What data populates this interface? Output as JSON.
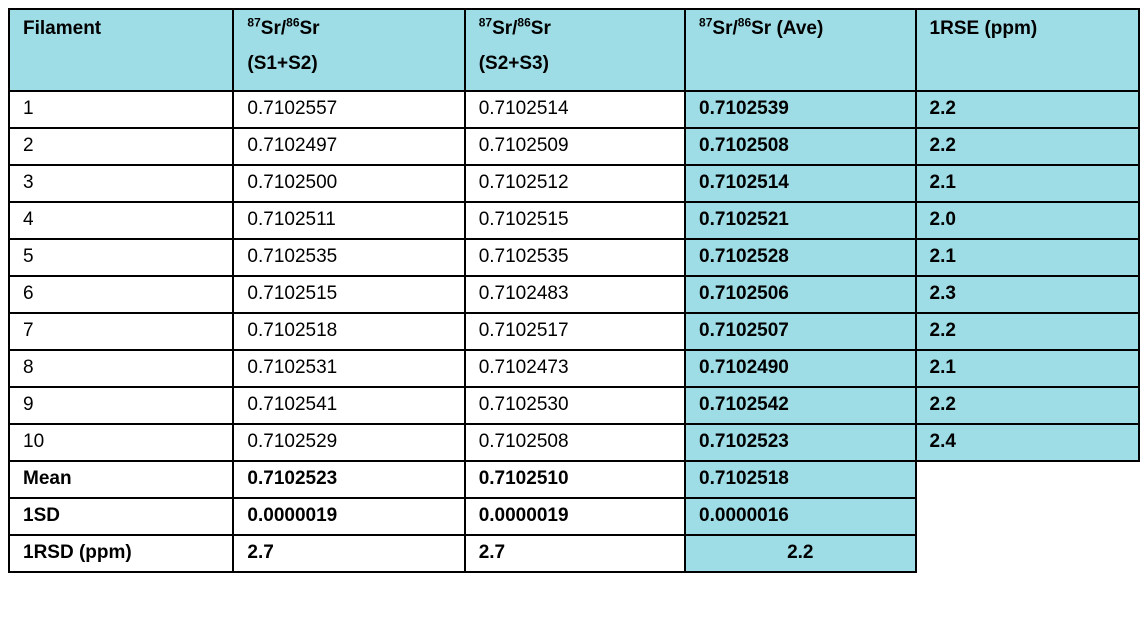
{
  "colors": {
    "header_bg": "#9EDDE6",
    "border": "#000000",
    "text": "#000000",
    "page_bg": "#FFFFFF"
  },
  "table": {
    "headers": [
      {
        "label": "Filament"
      },
      {
        "sup1": "87",
        "base1": "Sr/",
        "sup2": "86",
        "base2": "Sr",
        "line2": "(S1+S2)"
      },
      {
        "sup1": "87",
        "base1": "Sr/",
        "sup2": "86",
        "base2": "Sr",
        "line2": "(S2+S3)"
      },
      {
        "sup1": "87",
        "base1": "Sr/",
        "sup2": "86",
        "base2": "Sr",
        "suffix": " (Ave)"
      },
      {
        "label": "1RSE (ppm)"
      }
    ],
    "rows": [
      {
        "filament": "1",
        "s1s2": "0.7102557",
        "s2s3": "0.7102514",
        "ave": "0.7102539",
        "rse": "2.2"
      },
      {
        "filament": "2",
        "s1s2": "0.7102497",
        "s2s3": "0.7102509",
        "ave": "0.7102508",
        "rse": "2.2"
      },
      {
        "filament": "3",
        "s1s2": "0.7102500",
        "s2s3": "0.7102512",
        "ave": "0.7102514",
        "rse": "2.1"
      },
      {
        "filament": "4",
        "s1s2": "0.7102511",
        "s2s3": "0.7102515",
        "ave": "0.7102521",
        "rse": "2.0"
      },
      {
        "filament": "5",
        "s1s2": "0.7102535",
        "s2s3": "0.7102535",
        "ave": "0.7102528",
        "rse": "2.1"
      },
      {
        "filament": "6",
        "s1s2": "0.7102515",
        "s2s3": "0.7102483",
        "ave": "0.7102506",
        "rse": "2.3"
      },
      {
        "filament": "7",
        "s1s2": "0.7102518",
        "s2s3": "0.7102517",
        "ave": "0.7102507",
        "rse": "2.2"
      },
      {
        "filament": "8",
        "s1s2": "0.7102531",
        "s2s3": "0.7102473",
        "ave": "0.7102490",
        "rse": "2.1"
      },
      {
        "filament": "9",
        "s1s2": "0.7102541",
        "s2s3": "0.7102530",
        "ave": "0.7102542",
        "rse": "2.2"
      },
      {
        "filament": "10",
        "s1s2": "0.7102529",
        "s2s3": "0.7102508",
        "ave": "0.7102523",
        "rse": "2.4"
      }
    ],
    "summary": [
      {
        "label": "Mean",
        "s1s2": "0.7102523",
        "s2s3": "0.7102510",
        "ave": "0.7102518"
      },
      {
        "label": "1SD",
        "s1s2": "0.0000019",
        "s2s3": "0.0000019",
        "ave": "0.0000016"
      },
      {
        "label": "1RSD (ppm)",
        "s1s2": "2.7",
        "s2s3": "2.7",
        "ave": "2.2"
      }
    ]
  }
}
